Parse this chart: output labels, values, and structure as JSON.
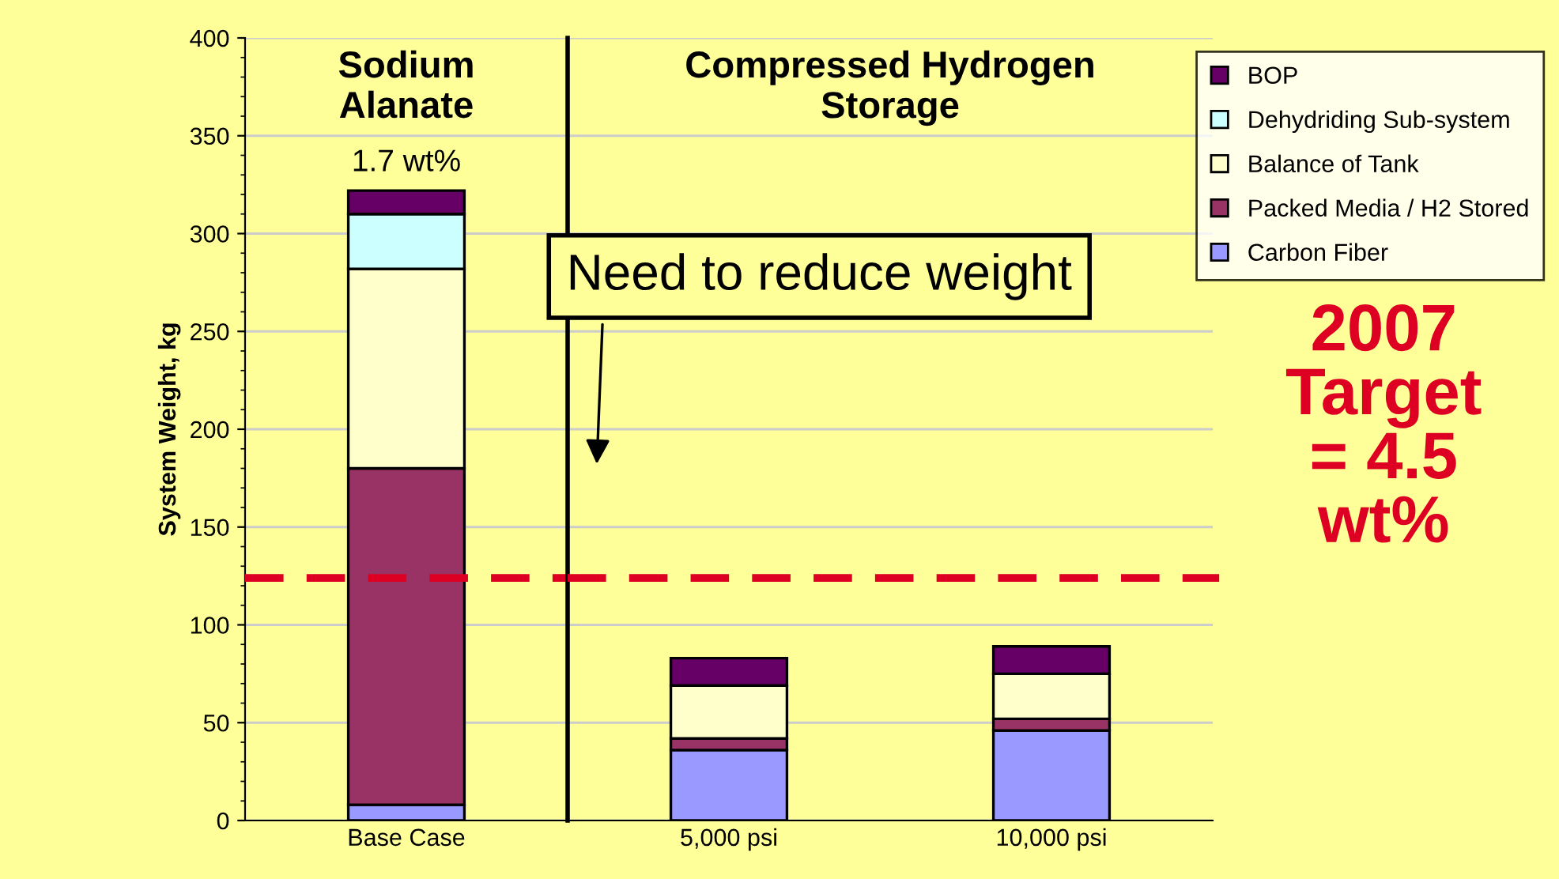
{
  "chart_data": [
    {
      "type": "bar",
      "stacked": true,
      "title": "Sodium Alanate",
      "ylabel": "System Weight, kg",
      "categories": [
        "Base Case"
      ],
      "series": [
        {
          "name": "Carbon Fiber",
          "color": "#9999ff",
          "values": [
            8
          ]
        },
        {
          "name": "Packed Media / H2 Stored",
          "color": "#993366",
          "values": [
            172
          ]
        },
        {
          "name": "Balance of Tank",
          "color": "#ffffcc",
          "values": [
            102
          ]
        },
        {
          "name": "Dehydriding Sub-system",
          "color": "#ccffff",
          "values": [
            28
          ]
        },
        {
          "name": "BOP",
          "color": "#660066",
          "values": [
            12
          ]
        }
      ],
      "ylim": [
        0,
        400
      ],
      "yticks": [
        0,
        50,
        100,
        150,
        200,
        250,
        300,
        350,
        400
      ],
      "grid": "y",
      "legend": "right",
      "ref_lines": [
        {
          "axis": "y",
          "value": 124,
          "color": "#dd0022",
          "line_style": "dashed"
        }
      ],
      "annotations": [
        "1.7 wt%"
      ]
    },
    {
      "type": "bar",
      "stacked": true,
      "title": "Compressed Hydrogen Storage",
      "categories": [
        "5,000 psi",
        "10,000 psi"
      ],
      "series": [
        {
          "color": "#9999ff",
          "values": [
            36,
            46
          ]
        },
        {
          "color": "#993366",
          "values": [
            6,
            6
          ]
        },
        {
          "color": "#ffffcc",
          "values": [
            27,
            23
          ]
        },
        {
          "color": "#ccffff",
          "values": [
            0,
            0
          ]
        },
        {
          "color": "#660066",
          "values": [
            14,
            14
          ]
        }
      ],
      "ylim": [
        0,
        400
      ],
      "yticks": [
        0,
        50,
        100,
        150,
        200,
        250,
        300,
        350,
        400
      ],
      "grid": "y",
      "tick_labels": "x",
      "ref_lines": [
        {
          "axis": "y",
          "value": 124,
          "color": "#dd0022",
          "line_style": "dashed"
        }
      ],
      "annotations": [
        "Need to reduce weight",
        "2007\nTarget\n= 4.5\nwt%"
      ]
    }
  ]
}
